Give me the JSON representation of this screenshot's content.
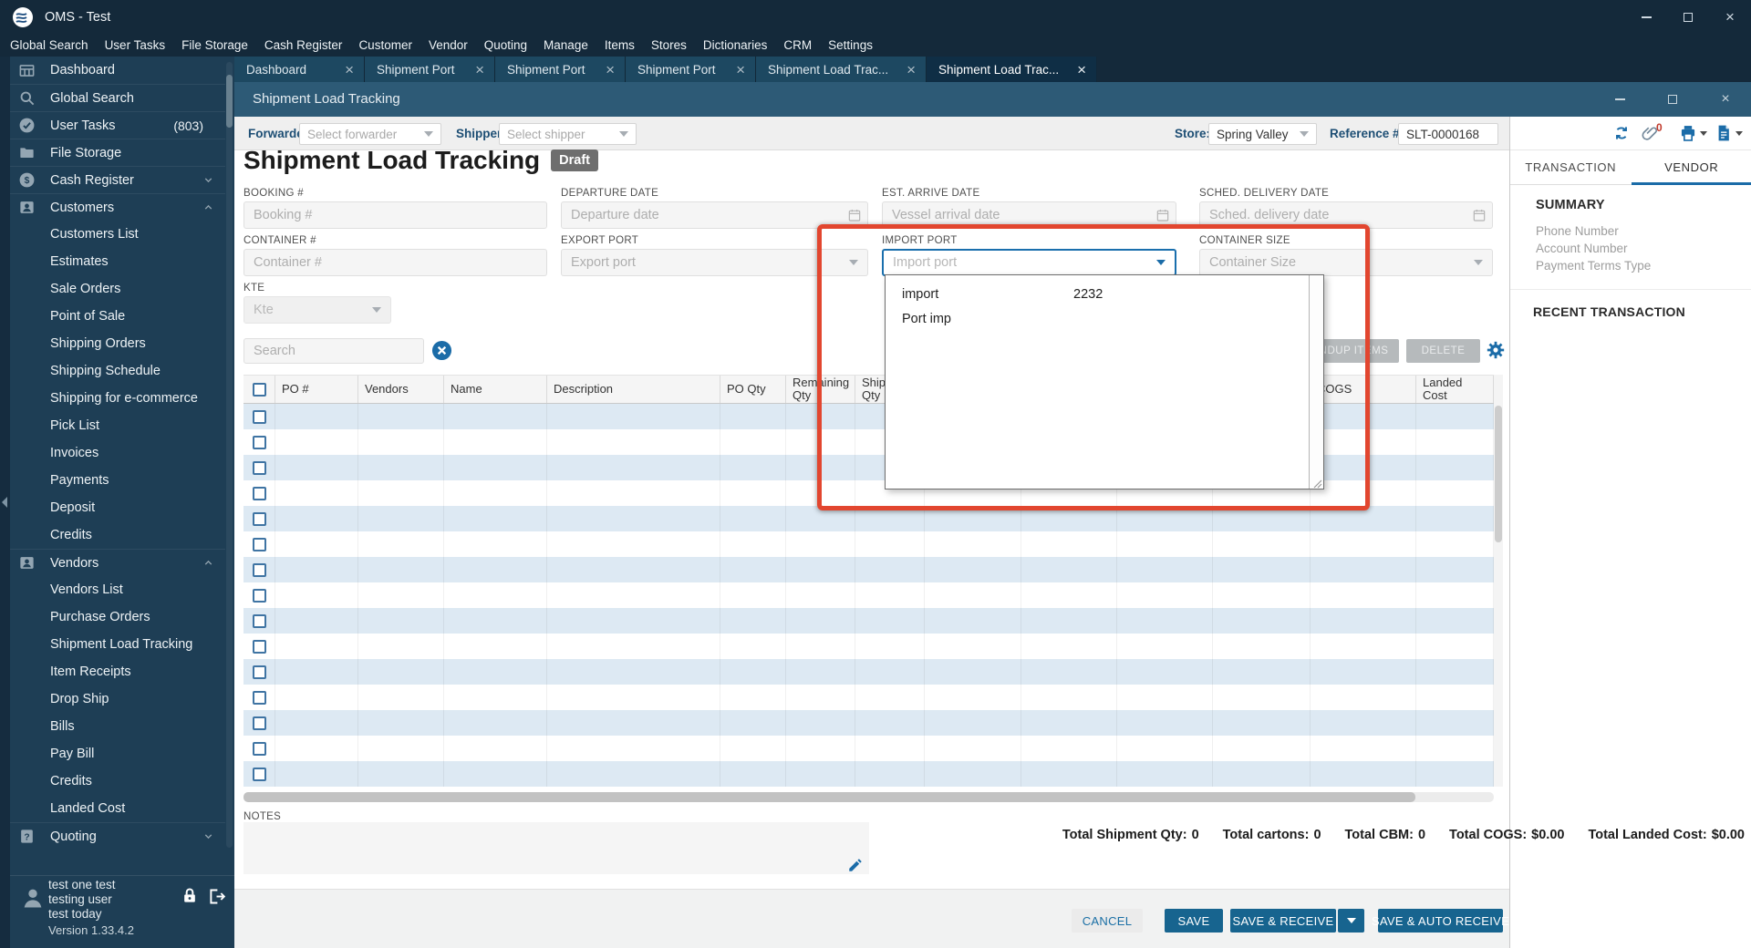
{
  "titlebar": {
    "title": "OMS - Test"
  },
  "menubar": {
    "items": [
      "Global Search",
      "User Tasks",
      "File Storage",
      "Cash Register",
      "Customer",
      "Vendor",
      "Quoting",
      "Manage",
      "Items",
      "Stores",
      "Dictionaries",
      "CRM",
      "Settings"
    ]
  },
  "tab_strip": {
    "tabs": [
      {
        "label": "Dashboard",
        "active": false
      },
      {
        "label": "Shipment Port",
        "active": false
      },
      {
        "label": "Shipment Port",
        "active": false
      },
      {
        "label": "Shipment Port",
        "active": false
      },
      {
        "label": "Shipment Load Trac...",
        "active": false
      },
      {
        "label": "Shipment Load Trac...",
        "active": true
      }
    ]
  },
  "sidebar": {
    "items": [
      {
        "label": "Dashboard",
        "icon": "dashboard-icon",
        "type": "top"
      },
      {
        "label": "Global Search",
        "icon": "search-icon",
        "type": "top"
      },
      {
        "label": "User Tasks",
        "icon": "tasks-icon",
        "type": "top",
        "badge": "(803)"
      },
      {
        "label": "File Storage",
        "icon": "folder-icon",
        "type": "top"
      },
      {
        "label": "Cash Register",
        "icon": "cash-icon",
        "type": "top",
        "chevron": "down"
      },
      {
        "label": "Customers",
        "icon": "customers-icon",
        "type": "top",
        "chevron": "up"
      },
      {
        "label": "Customers List",
        "type": "sub"
      },
      {
        "label": "Estimates",
        "type": "sub"
      },
      {
        "label": "Sale Orders",
        "type": "sub"
      },
      {
        "label": "Point of Sale",
        "type": "sub"
      },
      {
        "label": "Shipping Orders",
        "type": "sub"
      },
      {
        "label": "Shipping Schedule",
        "type": "sub"
      },
      {
        "label": "Shipping for e-commerce",
        "type": "sub"
      },
      {
        "label": "Pick List",
        "type": "sub"
      },
      {
        "label": "Invoices",
        "type": "sub"
      },
      {
        "label": "Payments",
        "type": "sub"
      },
      {
        "label": "Deposit",
        "type": "sub"
      },
      {
        "label": "Credits",
        "type": "sub"
      },
      {
        "label": "Vendors",
        "icon": "vendors-icon",
        "type": "top",
        "chevron": "up"
      },
      {
        "label": "Vendors List",
        "type": "sub"
      },
      {
        "label": "Purchase Orders",
        "type": "sub"
      },
      {
        "label": "Shipment Load Tracking",
        "type": "sub"
      },
      {
        "label": "Item Receipts",
        "type": "sub"
      },
      {
        "label": "Drop Ship",
        "type": "sub"
      },
      {
        "label": "Bills",
        "type": "sub"
      },
      {
        "label": "Pay Bill",
        "type": "sub"
      },
      {
        "label": "Credits",
        "type": "sub"
      },
      {
        "label": "Landed Cost",
        "type": "sub"
      },
      {
        "label": "Quoting",
        "icon": "quoting-icon",
        "type": "top",
        "chevron": "down"
      }
    ],
    "user": {
      "name_lines": [
        "test one test",
        "testing user",
        "test today"
      ],
      "version": "Version 1.33.4.2"
    }
  },
  "window": {
    "title": "Shipment Load Tracking"
  },
  "toolbar": {
    "forwarder_label": "Forwarder:",
    "forwarder_placeholder": "Select forwarder",
    "shipper_label": "Shipper:",
    "shipper_placeholder": "Select shipper",
    "store_label": "Store:",
    "store_value": "Spring Valley",
    "reference_label": "Reference #:",
    "reference_value": "SLT-0000168",
    "attachment_badge": "0"
  },
  "form": {
    "title": "Shipment Load Tracking",
    "status_badge": "Draft",
    "booking": {
      "label": "BOOKING #",
      "placeholder": "Booking #"
    },
    "departure": {
      "label": "DEPARTURE DATE",
      "placeholder": "Departure date"
    },
    "est_arrive": {
      "label": "EST. ARRIVE DATE",
      "placeholder": "Vessel arrival date"
    },
    "sched_delivery": {
      "label": "SCHED. DELIVERY DATE",
      "placeholder": "Sched. delivery date"
    },
    "container_no": {
      "label": "CONTAINER #",
      "placeholder": "Container #"
    },
    "export_port": {
      "label": "EXPORT PORT",
      "placeholder": "Export port"
    },
    "import_port": {
      "label": "IMPORT PORT",
      "placeholder": "Import port"
    },
    "container_size": {
      "label": "CONTAINER SIZE",
      "placeholder": "Container Size"
    },
    "kte": {
      "label": "KTE",
      "placeholder": "Kte"
    }
  },
  "import_port_dropdown": {
    "options": [
      {
        "name": "import",
        "code": "2232"
      },
      {
        "name": "Port imp",
        "code": ""
      }
    ]
  },
  "grid": {
    "search_placeholder": "Search",
    "roundup_button": "ROUNDUP ITEMS",
    "delete_button": "DELETE",
    "columns": [
      "PO #",
      "Vendors",
      "Name",
      "Description",
      "PO Qty",
      "Remaining Qty",
      "Shipment Qty",
      "",
      "",
      "",
      "",
      "COGS",
      "Landed Cost"
    ],
    "empty_row_count": 15
  },
  "notes": {
    "label": "NOTES"
  },
  "totals": [
    {
      "label": "Total Shipment Qty:",
      "value": "0"
    },
    {
      "label": "Total cartons:",
      "value": "0"
    },
    {
      "label": "Total CBM:",
      "value": "0"
    },
    {
      "label": "Total COGS:",
      "value": "$0.00"
    },
    {
      "label": "Total Landed Cost:",
      "value": "$0.00"
    }
  ],
  "footer": {
    "cancel": "CANCEL",
    "save": "SAVE",
    "save_receive": "SAVE & RECEIVE",
    "save_auto_receive": "SAVE & AUTO RECEIVE"
  },
  "right_panel": {
    "tabs": [
      {
        "label": "TRANSACTION",
        "active": false
      },
      {
        "label": "VENDOR",
        "active": true
      }
    ],
    "summary_title": "SUMMARY",
    "summary_items": [
      "Phone Number",
      "Account Number",
      "Payment Terms Type"
    ],
    "recent_title": "RECENT TRANSACTION"
  },
  "colors": {
    "accent_blue": "#1b6ca8",
    "button_blue": "#17648f",
    "highlight_red": "#e2462f",
    "sidebar_bg": "#1e3e55",
    "titlebar_bg": "#14293a",
    "window_titlebar_bg": "#2d5a76",
    "row_alt_blue": "#dde9f3"
  }
}
